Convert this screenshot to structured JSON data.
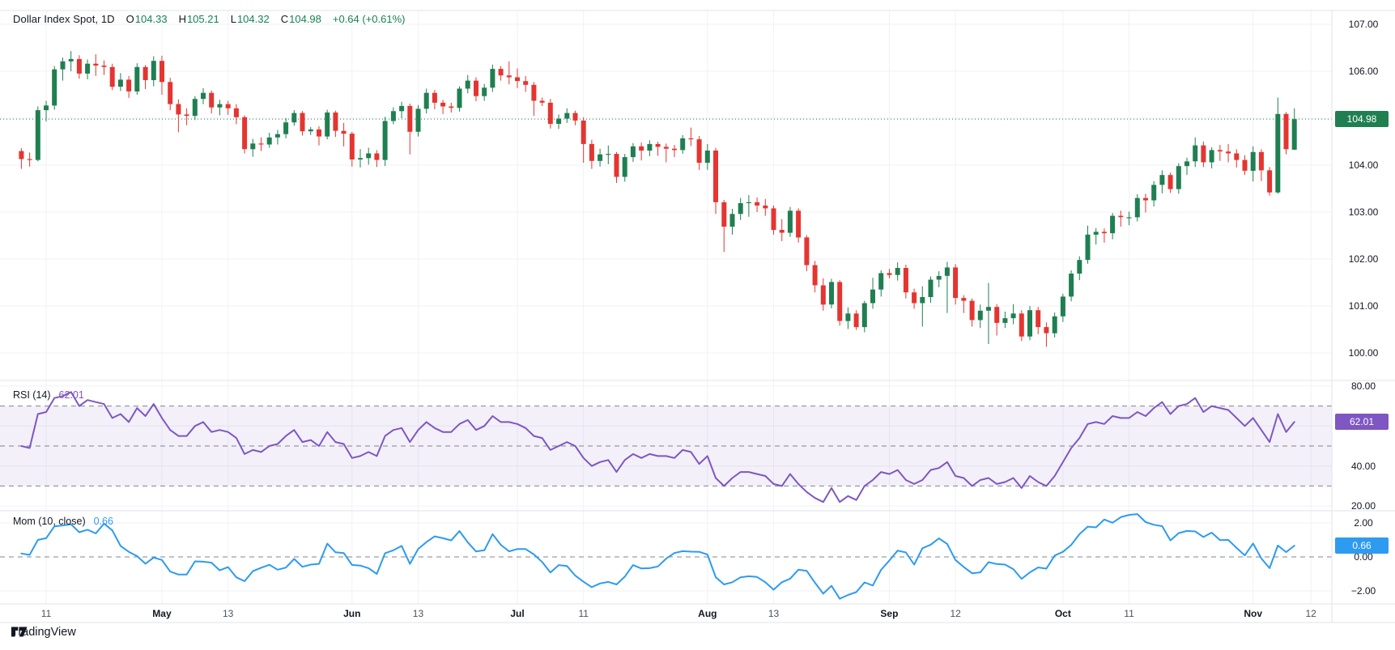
{
  "header": {
    "title": "Dollar Index Spot, 1D",
    "o_label": "O",
    "o": "104.33",
    "h_label": "H",
    "h": "105.21",
    "l_label": "L",
    "l": "104.32",
    "c_label": "C",
    "c": "104.98",
    "change": "+0.64 (+0.61%)"
  },
  "indicators": {
    "rsi": {
      "label": "RSI (14)",
      "value": "62.01"
    },
    "mom": {
      "label": "Mom (10, close)",
      "value": "0.66"
    }
  },
  "badges": {
    "price": "104.98",
    "rsi": "62.01",
    "mom": "0.66"
  },
  "brand": {
    "name": "TradingView"
  },
  "colors": {
    "up": "#1f7f51",
    "down": "#e43531",
    "rsi_line": "#7e57c2",
    "rsi_band": "rgba(126,87,194,0.09)",
    "mom_line": "#2d9bf0",
    "grid": "#f0f2f6",
    "separator": "#e0e3eb",
    "dashed_level": "#81848f",
    "text": "#131722",
    "badge_price_bg": "#1f7f51",
    "badge_rsi_bg": "#7e57c2",
    "badge_mom_bg": "#2d9bf0",
    "value_green": "#168254"
  },
  "axes": {
    "price_ticks": [
      {
        "value": 107,
        "label": "107.00"
      },
      {
        "value": 106,
        "label": "106.00"
      },
      {
        "value": 104,
        "label": "104.00"
      },
      {
        "value": 103,
        "label": "103.00"
      },
      {
        "value": 102,
        "label": "102.00"
      },
      {
        "value": 101,
        "label": "101.00"
      },
      {
        "value": 100,
        "label": "100.00"
      }
    ],
    "rsi_ticks": [
      {
        "value": 80,
        "label": "80.00"
      },
      {
        "value": 40,
        "label": "40.00"
      },
      {
        "value": 20,
        "label": "20.00"
      }
    ],
    "mom_ticks": [
      {
        "value": 2,
        "label": "2.00"
      },
      {
        "value": 0,
        "label": "0.00"
      },
      {
        "value": -2,
        "label": "−2.00"
      }
    ],
    "time_ticks": [
      {
        "i": 3,
        "label": "11",
        "major": false
      },
      {
        "i": 17,
        "label": "May",
        "major": true
      },
      {
        "i": 25,
        "label": "13",
        "major": false
      },
      {
        "i": 40,
        "label": "Jun",
        "major": true
      },
      {
        "i": 48,
        "label": "13",
        "major": false
      },
      {
        "i": 60,
        "label": "Jul",
        "major": true
      },
      {
        "i": 68,
        "label": "11",
        "major": false
      },
      {
        "i": 83,
        "label": "Aug",
        "major": true
      },
      {
        "i": 91,
        "label": "13",
        "major": false
      },
      {
        "i": 105,
        "label": "Sep",
        "major": true
      },
      {
        "i": 113,
        "label": "12",
        "major": false
      },
      {
        "i": 126,
        "label": "Oct",
        "major": true
      },
      {
        "i": 134,
        "label": "11",
        "major": false
      },
      {
        "i": 149,
        "label": "Nov",
        "major": true
      },
      {
        "i": 156,
        "label": "12",
        "major": false
      }
    ]
  },
  "chart_data": {
    "type": "candlestick",
    "title": "Dollar Index Spot, 1D",
    "interval": "1D",
    "last_price": 104.98,
    "price_ylim": [
      99.8,
      107.3
    ],
    "price_grid_values": [
      100,
      101,
      102,
      103,
      104,
      105,
      106,
      107
    ],
    "rsi_levels": [
      70,
      50,
      30
    ],
    "rsi_grid_values": [
      20,
      40,
      60,
      80
    ],
    "mom_level": 0,
    "mom_grid_values": [
      -2,
      2
    ],
    "candles": [
      [
        104.3,
        104.36,
        103.92,
        104.13
      ],
      [
        104.13,
        104.27,
        103.97,
        104.11
      ],
      [
        104.11,
        105.25,
        104.08,
        105.17
      ],
      [
        105.17,
        105.37,
        104.93,
        105.27
      ],
      [
        105.27,
        106.11,
        105.18,
        106.04
      ],
      [
        106.04,
        106.29,
        105.8,
        106.21
      ],
      [
        106.21,
        106.43,
        106.0,
        106.26
      ],
      [
        106.26,
        106.34,
        105.84,
        105.95
      ],
      [
        105.95,
        106.25,
        105.83,
        106.16
      ],
      [
        106.16,
        106.36,
        105.9,
        106.12
      ],
      [
        106.12,
        106.23,
        105.92,
        106.09
      ],
      [
        106.09,
        106.16,
        105.6,
        105.67
      ],
      [
        105.67,
        105.96,
        105.58,
        105.82
      ],
      [
        105.82,
        105.9,
        105.43,
        105.57
      ],
      [
        105.57,
        106.17,
        105.5,
        106.09
      ],
      [
        106.09,
        106.13,
        105.62,
        105.81
      ],
      [
        105.81,
        106.32,
        105.68,
        106.22
      ],
      [
        106.22,
        106.33,
        105.5,
        105.77
      ],
      [
        105.77,
        105.86,
        105.17,
        105.3
      ],
      [
        105.3,
        105.4,
        104.7,
        105.08
      ],
      [
        105.08,
        105.21,
        104.85,
        105.05
      ],
      [
        105.05,
        105.47,
        104.96,
        105.41
      ],
      [
        105.41,
        105.64,
        105.3,
        105.54
      ],
      [
        105.54,
        105.59,
        105.1,
        105.23
      ],
      [
        105.23,
        105.39,
        105.06,
        105.3
      ],
      [
        105.3,
        105.37,
        105.07,
        105.21
      ],
      [
        105.21,
        105.3,
        104.87,
        105.02
      ],
      [
        105.02,
        105.06,
        104.25,
        104.34
      ],
      [
        104.34,
        104.56,
        104.18,
        104.46
      ],
      [
        104.46,
        104.59,
        104.3,
        104.44
      ],
      [
        104.44,
        104.69,
        104.37,
        104.59
      ],
      [
        104.59,
        104.75,
        104.44,
        104.66
      ],
      [
        104.66,
        105.0,
        104.57,
        104.91
      ],
      [
        104.91,
        105.17,
        104.84,
        105.11
      ],
      [
        105.11,
        105.15,
        104.63,
        104.72
      ],
      [
        104.72,
        104.81,
        104.64,
        104.76
      ],
      [
        104.76,
        104.83,
        104.42,
        104.61
      ],
      [
        104.61,
        105.18,
        104.55,
        105.12
      ],
      [
        105.12,
        105.16,
        104.6,
        104.73
      ],
      [
        104.73,
        104.9,
        104.4,
        104.67
      ],
      [
        104.67,
        104.71,
        103.97,
        104.12
      ],
      [
        104.12,
        104.34,
        103.95,
        104.15
      ],
      [
        104.15,
        104.37,
        104.01,
        104.25
      ],
      [
        104.25,
        104.32,
        103.96,
        104.11
      ],
      [
        104.11,
        105.03,
        103.98,
        104.94
      ],
      [
        104.94,
        105.23,
        104.87,
        105.15
      ],
      [
        105.15,
        105.35,
        105.0,
        105.26
      ],
      [
        105.26,
        105.31,
        104.23,
        104.71
      ],
      [
        104.71,
        105.28,
        104.61,
        105.2
      ],
      [
        105.2,
        105.63,
        105.1,
        105.54
      ],
      [
        105.54,
        105.6,
        105.19,
        105.33
      ],
      [
        105.33,
        105.39,
        105.09,
        105.25
      ],
      [
        105.25,
        105.33,
        105.12,
        105.22
      ],
      [
        105.22,
        105.68,
        105.14,
        105.63
      ],
      [
        105.63,
        105.92,
        105.53,
        105.8
      ],
      [
        105.8,
        105.87,
        105.36,
        105.47
      ],
      [
        105.47,
        105.73,
        105.37,
        105.65
      ],
      [
        105.65,
        106.14,
        105.56,
        106.05
      ],
      [
        106.05,
        106.11,
        105.8,
        105.91
      ],
      [
        105.91,
        106.21,
        105.72,
        105.87
      ],
      [
        105.87,
        106.06,
        105.64,
        105.79
      ],
      [
        105.79,
        105.9,
        105.56,
        105.71
      ],
      [
        105.71,
        105.77,
        105.05,
        105.37
      ],
      [
        105.37,
        105.44,
        105.26,
        105.33
      ],
      [
        105.33,
        105.41,
        104.78,
        104.88
      ],
      [
        104.88,
        105.08,
        104.77,
        104.99
      ],
      [
        104.99,
        105.21,
        104.9,
        105.11
      ],
      [
        105.11,
        105.16,
        104.85,
        104.95
      ],
      [
        104.95,
        105.02,
        104.05,
        104.45
      ],
      [
        104.45,
        104.54,
        103.92,
        104.09
      ],
      [
        104.09,
        104.35,
        103.97,
        104.23
      ],
      [
        104.23,
        104.42,
        104.02,
        104.24
      ],
      [
        104.24,
        104.28,
        103.62,
        103.75
      ],
      [
        103.75,
        104.24,
        103.65,
        104.17
      ],
      [
        104.17,
        104.47,
        104.07,
        104.4
      ],
      [
        104.4,
        104.48,
        104.1,
        104.31
      ],
      [
        104.31,
        104.53,
        104.19,
        104.45
      ],
      [
        104.45,
        104.5,
        104.2,
        104.39
      ],
      [
        104.39,
        104.46,
        104.06,
        104.35
      ],
      [
        104.35,
        104.43,
        104.17,
        104.32
      ],
      [
        104.32,
        104.64,
        104.24,
        104.57
      ],
      [
        104.57,
        104.8,
        104.41,
        104.55
      ],
      [
        104.55,
        104.62,
        103.9,
        104.05
      ],
      [
        104.05,
        104.45,
        103.9,
        104.31
      ],
      [
        104.31,
        104.37,
        102.96,
        103.21
      ],
      [
        103.21,
        103.26,
        102.15,
        102.69
      ],
      [
        102.69,
        103.07,
        102.52,
        102.96
      ],
      [
        102.96,
        103.3,
        102.83,
        103.19
      ],
      [
        103.19,
        103.36,
        102.9,
        103.21
      ],
      [
        103.21,
        103.31,
        103.0,
        103.14
      ],
      [
        103.14,
        103.28,
        102.92,
        103.08
      ],
      [
        103.08,
        103.14,
        102.52,
        102.62
      ],
      [
        102.62,
        102.85,
        102.38,
        102.56
      ],
      [
        102.56,
        103.11,
        102.47,
        103.03
      ],
      [
        103.03,
        103.08,
        102.35,
        102.46
      ],
      [
        102.46,
        102.51,
        101.74,
        101.87
      ],
      [
        101.87,
        101.96,
        101.29,
        101.44
      ],
      [
        101.44,
        101.59,
        100.9,
        101.03
      ],
      [
        101.03,
        101.58,
        100.95,
        101.51
      ],
      [
        101.51,
        101.55,
        100.58,
        100.68
      ],
      [
        100.68,
        100.97,
        100.51,
        100.84
      ],
      [
        100.84,
        100.91,
        100.49,
        100.55
      ],
      [
        100.55,
        101.11,
        100.44,
        101.06
      ],
      [
        101.06,
        101.6,
        100.94,
        101.35
      ],
      [
        101.35,
        101.76,
        101.2,
        101.7
      ],
      [
        101.7,
        101.79,
        101.59,
        101.66
      ],
      [
        101.66,
        101.93,
        101.54,
        101.81
      ],
      [
        101.81,
        101.88,
        101.16,
        101.29
      ],
      [
        101.29,
        101.37,
        100.94,
        101.06
      ],
      [
        101.06,
        101.42,
        100.56,
        101.19
      ],
      [
        101.19,
        101.63,
        101.07,
        101.56
      ],
      [
        101.56,
        101.74,
        101.4,
        101.64
      ],
      [
        101.64,
        101.94,
        100.85,
        101.82
      ],
      [
        101.82,
        101.89,
        101.03,
        101.17
      ],
      [
        101.17,
        101.23,
        100.85,
        101.11
      ],
      [
        101.11,
        101.16,
        100.56,
        100.7
      ],
      [
        100.7,
        101.03,
        100.53,
        100.9
      ],
      [
        100.9,
        101.49,
        100.19,
        100.98
      ],
      [
        100.98,
        101.04,
        100.37,
        100.64
      ],
      [
        100.64,
        100.88,
        100.53,
        100.74
      ],
      [
        100.74,
        101.04,
        100.61,
        100.84
      ],
      [
        100.84,
        100.91,
        100.25,
        100.35
      ],
      [
        100.35,
        101.0,
        100.27,
        100.91
      ],
      [
        100.91,
        100.98,
        100.4,
        100.55
      ],
      [
        100.55,
        100.65,
        100.13,
        100.42
      ],
      [
        100.42,
        100.86,
        100.33,
        100.78
      ],
      [
        100.78,
        101.26,
        100.66,
        101.2
      ],
      [
        101.2,
        101.76,
        101.1,
        101.69
      ],
      [
        101.69,
        102.06,
        101.55,
        101.98
      ],
      [
        101.98,
        102.71,
        101.9,
        102.52
      ],
      [
        102.52,
        102.66,
        102.31,
        102.58
      ],
      [
        102.58,
        102.65,
        102.35,
        102.55
      ],
      [
        102.55,
        102.98,
        102.42,
        102.92
      ],
      [
        102.92,
        103.03,
        102.69,
        102.89
      ],
      [
        102.89,
        103.01,
        102.72,
        102.89
      ],
      [
        102.89,
        103.38,
        102.8,
        103.3
      ],
      [
        103.3,
        103.39,
        102.99,
        103.25
      ],
      [
        103.25,
        103.66,
        103.12,
        103.58
      ],
      [
        103.58,
        103.89,
        103.4,
        103.79
      ],
      [
        103.79,
        103.84,
        103.41,
        103.49
      ],
      [
        103.49,
        104.04,
        103.39,
        103.98
      ],
      [
        103.98,
        104.16,
        103.79,
        104.08
      ],
      [
        104.08,
        104.59,
        103.96,
        104.42
      ],
      [
        104.42,
        104.5,
        103.96,
        104.06
      ],
      [
        104.06,
        104.38,
        103.93,
        104.32
      ],
      [
        104.32,
        104.43,
        104.09,
        104.29
      ],
      [
        104.29,
        104.45,
        104.06,
        104.25
      ],
      [
        104.25,
        104.34,
        103.95,
        104.11
      ],
      [
        104.11,
        104.21,
        103.79,
        103.88
      ],
      [
        103.88,
        104.4,
        103.65,
        104.28
      ],
      [
        104.28,
        104.34,
        103.66,
        103.89
      ],
      [
        103.89,
        103.96,
        103.35,
        103.42
      ],
      [
        103.42,
        105.44,
        103.39,
        105.09
      ],
      [
        105.09,
        105.13,
        104.23,
        104.34
      ],
      [
        104.33,
        105.21,
        104.32,
        104.98
      ]
    ],
    "rsi": [
      50,
      49,
      66,
      67,
      74,
      75,
      77,
      70,
      73,
      72,
      71,
      64,
      66,
      62,
      69,
      65,
      71,
      64,
      58,
      55,
      55,
      60,
      62,
      57,
      58,
      57,
      54,
      46,
      48,
      47,
      50,
      51,
      55,
      58,
      52,
      53,
      50,
      57,
      52,
      51,
      44,
      45,
      47,
      45,
      55,
      58,
      59,
      52,
      58,
      62,
      59,
      57,
      57,
      61,
      63,
      58,
      60,
      65,
      62,
      62,
      61,
      59,
      55,
      54,
      48,
      50,
      52,
      50,
      44,
      40,
      42,
      43,
      37,
      43,
      46,
      44,
      46,
      45,
      45,
      44,
      48,
      47,
      41,
      45,
      34,
      30,
      34,
      37,
      37,
      36,
      35,
      31,
      30,
      36,
      31,
      27,
      24,
      22,
      29,
      22,
      25,
      23,
      30,
      33,
      37,
      36,
      38,
      33,
      31,
      33,
      38,
      39,
      42,
      35,
      34,
      30,
      33,
      34,
      31,
      32,
      34,
      29,
      35,
      32,
      30,
      35,
      42,
      49,
      54,
      61,
      62,
      61,
      65,
      64,
      64,
      67,
      65,
      69,
      72,
      66,
      70,
      71,
      74,
      67,
      70,
      69,
      68,
      64,
      60,
      64,
      58,
      52,
      66,
      57,
      62.01
    ],
    "mom": [
      0.2,
      0.12,
      1.0,
      1.1,
      1.8,
      1.85,
      1.92,
      1.45,
      1.6,
      1.38,
      1.96,
      1.56,
      0.65,
      0.3,
      0.05,
      -0.4,
      -0.04,
      -0.18,
      -0.86,
      -1.04,
      -1.04,
      -0.26,
      -0.28,
      -0.34,
      -0.79,
      -0.6,
      -1.2,
      -1.43,
      -0.84,
      -0.64,
      -0.46,
      -0.75,
      -0.63,
      -0.12,
      -0.58,
      -0.45,
      -0.41,
      0.78,
      0.27,
      0.23,
      -0.47,
      -0.51,
      -0.66,
      -1.0,
      0.22,
      0.39,
      0.65,
      -0.41,
      0.47,
      0.87,
      1.21,
      1.1,
      0.97,
      1.52,
      0.86,
      0.32,
      0.39,
      1.34,
      0.71,
      0.33,
      0.46,
      0.46,
      0.15,
      -0.3,
      -0.92,
      -0.48,
      -0.54,
      -1.1,
      -1.46,
      -1.78,
      -1.56,
      -1.47,
      -1.62,
      -1.16,
      -0.48,
      -0.68,
      -0.66,
      -0.56,
      -0.1,
      0.23,
      0.34,
      0.31,
      0.3,
      0.14,
      -1.19,
      -1.62,
      -1.49,
      -1.2,
      -1.14,
      -1.18,
      -1.49,
      -1.93,
      -1.49,
      -1.28,
      -0.75,
      -0.82,
      -1.52,
      -2.16,
      -1.7,
      -2.46,
      -2.24,
      -2.07,
      -1.5,
      -1.68,
      -0.76,
      -0.21,
      0.37,
      0.26,
      -0.45,
      0.51,
      0.72,
      1.09,
      0.76,
      -0.18,
      -0.59,
      -0.96,
      -0.91,
      -0.31,
      -0.42,
      -0.45,
      -0.72,
      -1.29,
      -0.91,
      -0.62,
      -0.69,
      0.08,
      0.3,
      0.71,
      1.34,
      1.78,
      1.74,
      2.2,
      2.01,
      2.34,
      2.47,
      2.52,
      2.05,
      1.89,
      1.81,
      0.97,
      1.4,
      1.53,
      1.5,
      1.17,
      1.43,
      0.99,
      1.0,
      0.53,
      0.09,
      0.79,
      -0.09,
      -0.66,
      0.67,
      0.28,
      0.66
    ]
  }
}
